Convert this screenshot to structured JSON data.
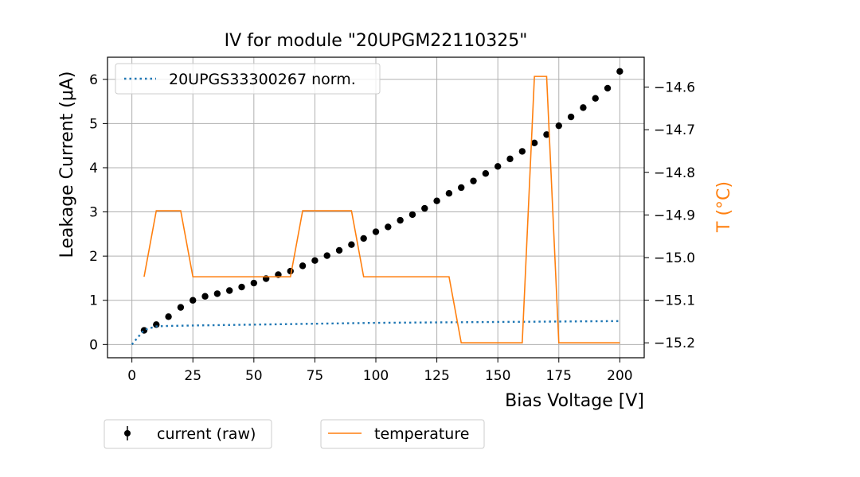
{
  "chart_data": {
    "type": "line",
    "title": "IV for module \"20UPGM22110325\"",
    "xlabel": "Bias Voltage [V]",
    "ylabel": "Leakage Current (μA)",
    "y2label": "T (°C)",
    "xlim": [
      -10,
      210
    ],
    "ylim": [
      -0.3,
      6.5
    ],
    "y2lim": [
      -15.235,
      -14.53
    ],
    "xticks": [
      0,
      25,
      50,
      75,
      100,
      125,
      150,
      175,
      200
    ],
    "yticks": [
      0,
      1,
      2,
      3,
      4,
      5,
      6
    ],
    "y2ticks": [
      -15.2,
      -15.1,
      -15.0,
      -14.9,
      -14.8,
      -14.7,
      -14.6
    ],
    "y2tick_labels": [
      "−15.2",
      "−15.1",
      "−15.0",
      "−14.9",
      "−14.8",
      "−14.7",
      "−14.6"
    ],
    "grid": true,
    "series": [
      {
        "name": "current (raw)",
        "style": "markers",
        "color": "#000000",
        "axis": "left",
        "x": [
          5,
          10,
          15,
          20,
          25,
          30,
          35,
          40,
          45,
          50,
          55,
          60,
          65,
          70,
          75,
          80,
          85,
          90,
          95,
          100,
          105,
          110,
          115,
          120,
          125,
          130,
          135,
          140,
          145,
          150,
          155,
          160,
          165,
          170,
          175,
          180,
          185,
          190,
          195,
          200
        ],
        "y": [
          0.32,
          0.45,
          0.63,
          0.84,
          1.0,
          1.09,
          1.15,
          1.22,
          1.3,
          1.39,
          1.49,
          1.58,
          1.66,
          1.78,
          1.9,
          2.01,
          2.13,
          2.26,
          2.4,
          2.55,
          2.66,
          2.81,
          2.94,
          3.08,
          3.25,
          3.42,
          3.55,
          3.7,
          3.87,
          4.03,
          4.2,
          4.37,
          4.56,
          4.75,
          4.95,
          5.15,
          5.36,
          5.57,
          5.8,
          6.18
        ]
      },
      {
        "name": "20UPGS33300267 norm.",
        "style": "dotted",
        "color": "#1f77b4",
        "axis": "left",
        "x": [
          0,
          5,
          10,
          15,
          25,
          50,
          75,
          100,
          125,
          150,
          175,
          200
        ],
        "y": [
          0.0,
          0.33,
          0.41,
          0.42,
          0.43,
          0.45,
          0.47,
          0.49,
          0.5,
          0.51,
          0.52,
          0.53
        ]
      },
      {
        "name": "temperature",
        "style": "line",
        "color": "#ff7f0e",
        "axis": "right",
        "x": [
          5,
          10,
          20,
          25,
          65,
          70,
          90,
          95,
          130,
          135,
          160,
          165,
          170,
          175,
          200
        ],
        "y": [
          -15.045,
          -14.89,
          -14.89,
          -15.045,
          -15.045,
          -14.89,
          -14.89,
          -15.045,
          -15.045,
          -15.2,
          -15.2,
          -14.575,
          -14.575,
          -15.2,
          -15.2
        ]
      }
    ],
    "legend_top": "20UPGS33300267 norm.",
    "legend_bottom": [
      "current (raw)",
      "temperature"
    ]
  }
}
